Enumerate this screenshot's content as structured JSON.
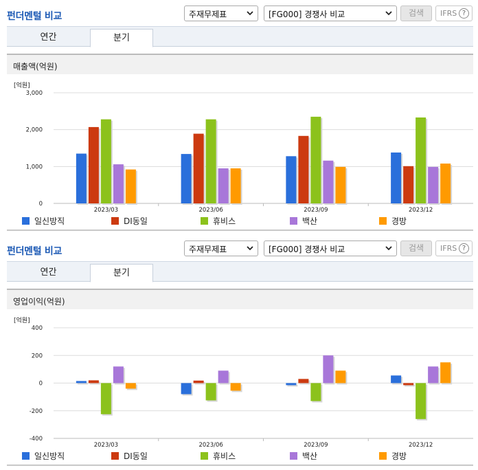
{
  "colors": {
    "title": "#1d5ab5",
    "series": [
      "#2a6fdb",
      "#cc3a10",
      "#8cc21c",
      "#a877d9",
      "#ff9a00"
    ]
  },
  "panels": [
    {
      "title": "펀더멘털 비교",
      "select_type": "주재무제표",
      "select_compare": "[FG000] 경쟁사 비교",
      "search_label": "검색",
      "ifrs_label": "IFRS",
      "help_glyph": "?",
      "tabs": [
        "연간",
        "분기"
      ],
      "active_tab": "분기",
      "chart_title": "매출액(억원)",
      "chart_data": {
        "type": "bar",
        "unit_label": "[억원]",
        "categories": [
          "2023/03",
          "2023/06",
          "2023/09",
          "2023/12"
        ],
        "ylim": [
          0,
          3000
        ],
        "yticks": [
          0,
          1000,
          2000,
          3000
        ],
        "ytick_labels": [
          "0",
          "1,000",
          "2,000",
          "3,000"
        ],
        "grid": true,
        "legend_position": "bottom",
        "series": [
          {
            "name": "일신방직",
            "values": [
              1350,
              1340,
              1280,
              1380
            ]
          },
          {
            "name": "DI동일",
            "values": [
              2070,
              1890,
              1830,
              1010
            ]
          },
          {
            "name": "휴비스",
            "values": [
              2280,
              2280,
              2350,
              2330
            ]
          },
          {
            "name": "백산",
            "values": [
              1060,
              950,
              1160,
              990
            ]
          },
          {
            "name": "경방",
            "values": [
              920,
              950,
              990,
              1080
            ]
          }
        ]
      }
    },
    {
      "title": "펀더멘털 비교",
      "select_type": "주재무제표",
      "select_compare": "[FG000] 경쟁사 비교",
      "search_label": "검색",
      "ifrs_label": "IFRS",
      "help_glyph": "?",
      "tabs": [
        "연간",
        "분기"
      ],
      "active_tab": "분기",
      "chart_title": "영업이익(억원)",
      "chart_data": {
        "type": "bar",
        "unit_label": "[억원]",
        "categories": [
          "2023/03",
          "2023/06",
          "2023/09",
          "2023/12"
        ],
        "ylim": [
          -400,
          400
        ],
        "yticks": [
          -400,
          -200,
          0,
          200,
          400
        ],
        "ytick_labels": [
          "-400",
          "-200",
          "0",
          "200",
          "400"
        ],
        "grid": true,
        "legend_position": "bottom",
        "series": [
          {
            "name": "일신방직",
            "values": [
              15,
              -80,
              -15,
              55
            ]
          },
          {
            "name": "DI동일",
            "values": [
              20,
              18,
              30,
              -15
            ]
          },
          {
            "name": "휴비스",
            "values": [
              -225,
              -125,
              -130,
              -260
            ]
          },
          {
            "name": "백산",
            "values": [
              120,
              90,
              200,
              120
            ]
          },
          {
            "name": "경방",
            "values": [
              -40,
              -55,
              90,
              150
            ]
          }
        ]
      }
    }
  ]
}
